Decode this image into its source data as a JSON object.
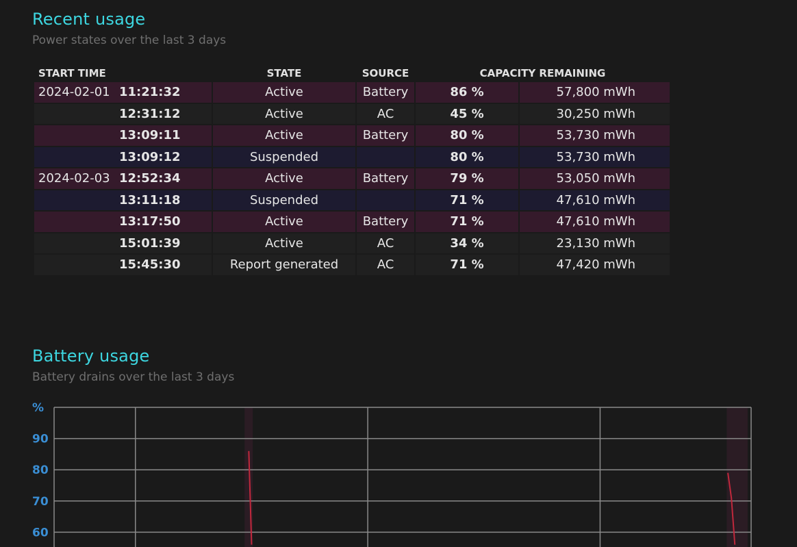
{
  "recent": {
    "title": "Recent usage",
    "subtitle": "Power states over the last 3 days",
    "headers": {
      "start_time": "START TIME",
      "state": "STATE",
      "source": "SOURCE",
      "capacity": "CAPACITY REMAINING"
    },
    "rows": [
      {
        "date": "2024-02-01",
        "time": "11:21:32",
        "state": "Active",
        "source": "Battery",
        "pct": "86 %",
        "cap": "57,800 mWh",
        "kind": "battery"
      },
      {
        "date": "",
        "time": "12:31:12",
        "state": "Active",
        "source": "AC",
        "pct": "45 %",
        "cap": "30,250 mWh",
        "kind": "ac"
      },
      {
        "date": "",
        "time": "13:09:11",
        "state": "Active",
        "source": "Battery",
        "pct": "80 %",
        "cap": "53,730 mWh",
        "kind": "battery"
      },
      {
        "date": "",
        "time": "13:09:12",
        "state": "Suspended",
        "source": "",
        "pct": "80 %",
        "cap": "53,730 mWh",
        "kind": "suspended"
      },
      {
        "date": "2024-02-03",
        "time": "12:52:34",
        "state": "Active",
        "source": "Battery",
        "pct": "79 %",
        "cap": "53,050 mWh",
        "kind": "battery"
      },
      {
        "date": "",
        "time": "13:11:18",
        "state": "Suspended",
        "source": "",
        "pct": "71 %",
        "cap": "47,610 mWh",
        "kind": "suspended"
      },
      {
        "date": "",
        "time": "13:17:50",
        "state": "Active",
        "source": "Battery",
        "pct": "71 %",
        "cap": "47,610 mWh",
        "kind": "battery"
      },
      {
        "date": "",
        "time": "15:01:39",
        "state": "Active",
        "source": "AC",
        "pct": "34 %",
        "cap": "23,130 mWh",
        "kind": "ac"
      },
      {
        "date": "",
        "time": "15:45:30",
        "state": "Report generated",
        "source": "AC",
        "pct": "71 %",
        "cap": "47,420 mWh",
        "kind": "ac"
      }
    ]
  },
  "battery": {
    "title": "Battery usage",
    "subtitle": "Battery drains over the last 3 days"
  },
  "chart_data": {
    "type": "line",
    "y_unit_label": "%",
    "y_ticks": [
      "90",
      "80",
      "70",
      "60"
    ],
    "y_tick_values": [
      90,
      80,
      70,
      60
    ],
    "visible_ylim": [
      56,
      100
    ],
    "xlim_days": [
      0,
      3
    ],
    "grid": true,
    "series": [
      {
        "points": [
          {
            "x": 0.838,
            "y": 86
          },
          {
            "x": 0.85,
            "y": 56
          }
        ]
      },
      {
        "points": [
          {
            "x": 2.9,
            "y": 79
          },
          {
            "x": 2.915,
            "y": 71
          },
          {
            "x": 2.93,
            "y": 56
          }
        ]
      }
    ],
    "shaded_day_ranges": [
      [
        0.82,
        0.855
      ],
      [
        2.895,
        2.985
      ]
    ],
    "colors": {
      "line": "#c0283c",
      "grid": "#8a8a8a",
      "shade": "#2b1c24",
      "tick": "#3a8ed4"
    }
  }
}
